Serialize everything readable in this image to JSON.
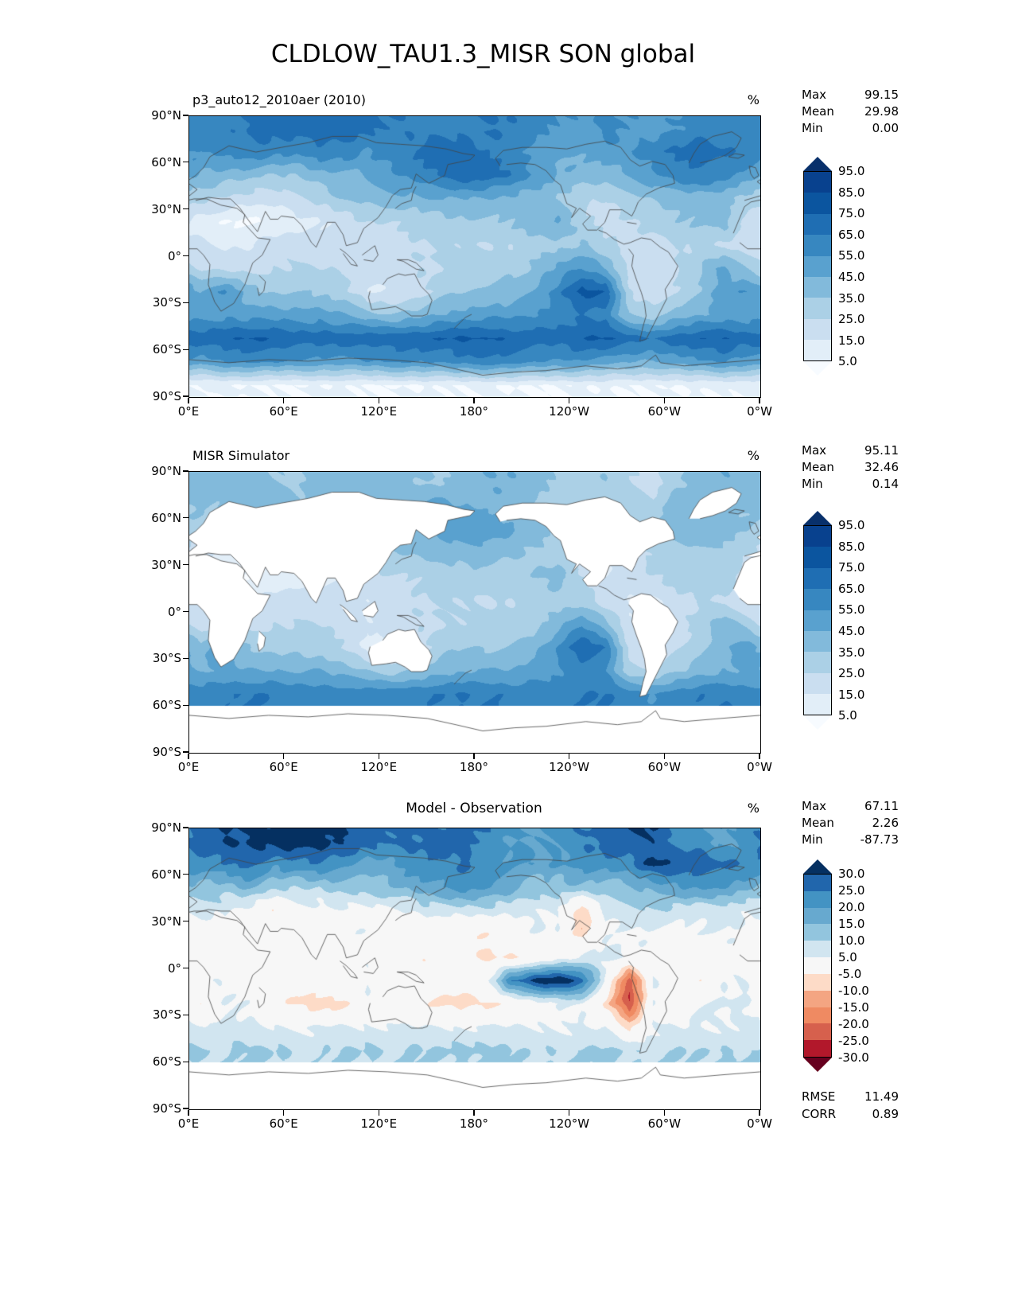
{
  "title": "CLDLOW_TAU1.3_MISR SON global",
  "axes": {
    "y_tick_labels": [
      "90°N",
      "60°N",
      "30°N",
      "0°",
      "30°S",
      "60°S",
      "90°S"
    ],
    "x_tick_labels": [
      "0°E",
      "60°E",
      "120°E",
      "180°",
      "120°W",
      "60°W",
      "0°W"
    ]
  },
  "chart_data": [
    {
      "type": "heatmap",
      "title": "p3_auto12_2010aer (2010)",
      "units": "%",
      "stats": [
        {
          "label": "Max",
          "value": "99.15"
        },
        {
          "label": "Mean",
          "value": "29.98"
        },
        {
          "label": "Min",
          "value": "0.00"
        }
      ],
      "colorbar": {
        "extend": "both",
        "levels": [
          5,
          15,
          25,
          35,
          45,
          55,
          65,
          75,
          85,
          95
        ],
        "tick_labels": [
          "95.0",
          "85.0",
          "75.0",
          "65.0",
          "55.0",
          "45.0",
          "35.0",
          "25.0",
          "15.0",
          "5.0"
        ],
        "colors": [
          "#f7fbff",
          "#e2eef8",
          "#cadef0",
          "#abd0e6",
          "#82badb",
          "#59a1cf",
          "#3787c0",
          "#1f6eb3",
          "#0b559f",
          "#08418e",
          "#08306b"
        ]
      },
      "grid": {
        "lon_start_deg": 0,
        "lon_step_deg": 15,
        "lat_start_deg": 90,
        "lat_step_deg": -15,
        "order": "rows 90N to 90S, cols 0E eastward, cell-center values, units percent"
      },
      "values": [
        [
          60,
          62,
          65,
          68,
          70,
          72,
          70,
          68,
          65,
          62,
          60,
          63,
          65,
          64,
          60,
          55,
          52,
          58,
          55,
          50,
          55,
          60,
          62,
          60
        ],
        [
          55,
          60,
          64,
          60,
          58,
          64,
          60,
          55,
          60,
          66,
          70,
          70,
          65,
          58,
          52,
          48,
          45,
          50,
          55,
          62,
          66,
          70,
          66,
          60
        ],
        [
          45,
          40,
          38,
          35,
          35,
          40,
          42,
          46,
          52,
          58,
          66,
          72,
          70,
          64,
          54,
          44,
          40,
          40,
          46,
          52,
          60,
          66,
          60,
          50
        ],
        [
          30,
          24,
          20,
          20,
          25,
          30,
          35,
          40,
          42,
          42,
          46,
          46,
          45,
          42,
          40,
          34,
          26,
          24,
          30,
          36,
          40,
          40,
          36,
          30
        ],
        [
          10,
          5,
          4,
          5,
          10,
          15,
          20,
          25,
          26,
          30,
          30,
          32,
          34,
          36,
          40,
          46,
          30,
          20,
          24,
          30,
          34,
          36,
          40,
          20
        ],
        [
          15,
          14,
          15,
          20,
          20,
          20,
          18,
          18,
          20,
          24,
          25,
          26,
          26,
          26,
          30,
          32,
          36,
          26,
          20,
          20,
          24,
          26,
          25,
          18
        ],
        [
          25,
          20,
          20,
          25,
          26,
          25,
          24,
          20,
          20,
          24,
          26,
          26,
          30,
          32,
          36,
          46,
          56,
          46,
          20,
          20,
          26,
          36,
          46,
          34
        ],
        [
          46,
          56,
          40,
          34,
          34,
          34,
          30,
          15,
          14,
          20,
          30,
          34,
          36,
          40,
          46,
          60,
          80,
          76,
          24,
          20,
          26,
          36,
          50,
          55
        ],
        [
          50,
          52,
          50,
          50,
          50,
          50,
          46,
          40,
          36,
          40,
          46,
          50,
          52,
          52,
          56,
          60,
          64,
          60,
          36,
          30,
          40,
          46,
          50,
          50
        ],
        [
          70,
          74,
          76,
          74,
          70,
          70,
          70,
          70,
          72,
          72,
          74,
          76,
          76,
          72,
          70,
          70,
          74,
          76,
          70,
          66,
          70,
          74,
          76,
          70
        ],
        [
          50,
          54,
          56,
          55,
          54,
          50,
          50,
          54,
          56,
          55,
          56,
          60,
          62,
          60,
          56,
          54,
          54,
          50,
          46,
          44,
          50,
          54,
          56,
          50
        ],
        [
          6,
          6,
          5,
          5,
          5,
          6,
          6,
          5,
          5,
          5,
          6,
          6,
          6,
          5,
          5,
          5,
          6,
          6,
          5,
          5,
          5,
          6,
          6,
          6
        ]
      ]
    },
    {
      "type": "heatmap",
      "title": "MISR Simulator",
      "units": "%",
      "stats": [
        {
          "label": "Max",
          "value": "95.11"
        },
        {
          "label": "Mean",
          "value": "32.46"
        },
        {
          "label": "Min",
          "value": "0.14"
        }
      ],
      "colorbar": {
        "extend": "both",
        "levels": [
          5,
          15,
          25,
          35,
          45,
          55,
          65,
          75,
          85,
          95
        ],
        "tick_labels": [
          "95.0",
          "85.0",
          "75.0",
          "65.0",
          "55.0",
          "45.0",
          "35.0",
          "25.0",
          "15.0",
          "5.0"
        ],
        "colors": [
          "#f7fbff",
          "#e2eef8",
          "#cadef0",
          "#abd0e6",
          "#82badb",
          "#59a1cf",
          "#3787c0",
          "#1f6eb3",
          "#0b559f",
          "#08418e",
          "#08306b"
        ]
      },
      "grid": {
        "lon_start_deg": 0,
        "lon_step_deg": 15,
        "lat_start_deg": 90,
        "lat_step_deg": -15,
        "order": "rows 90N to 90S, cols 0E eastward, cell-center values, units percent, null = no retrieval"
      },
      "values": [
        [
          40,
          40,
          42,
          36,
          34,
          40,
          40,
          40,
          40,
          36,
          34,
          40,
          44,
          44,
          40,
          34,
          30,
          34,
          26,
          20,
          34,
          40,
          44,
          40
        ],
        [
          36,
          36,
          40,
          40,
          36,
          40,
          40,
          40,
          42,
          46,
          50,
          46,
          44,
          40,
          34,
          30,
          26,
          30,
          34,
          30,
          40,
          44,
          40,
          36
        ],
        [
          30,
          26,
          20,
          20,
          22,
          26,
          26,
          30,
          36,
          40,
          46,
          50,
          50,
          46,
          40,
          30,
          26,
          26,
          30,
          36,
          40,
          44,
          40,
          34
        ],
        [
          20,
          15,
          10,
          10,
          15,
          20,
          25,
          30,
          34,
          36,
          40,
          40,
          40,
          36,
          34,
          30,
          20,
          16,
          20,
          26,
          30,
          34,
          30,
          25
        ],
        [
          10,
          6,
          5,
          5,
          10,
          14,
          16,
          20,
          24,
          26,
          30,
          30,
          30,
          30,
          34,
          40,
          26,
          15,
          20,
          25,
          30,
          30,
          34,
          15
        ],
        [
          14,
          10,
          14,
          20,
          20,
          20,
          16,
          15,
          20,
          24,
          25,
          25,
          25,
          25,
          30,
          30,
          30,
          20,
          15,
          15,
          20,
          24,
          25,
          15
        ],
        [
          20,
          16,
          20,
          25,
          25,
          25,
          20,
          15,
          20,
          24,
          25,
          25,
          26,
          30,
          30,
          40,
          54,
          40,
          15,
          15,
          20,
          30,
          40,
          30
        ],
        [
          40,
          50,
          36,
          30,
          30,
          30,
          26,
          10,
          14,
          20,
          30,
          34,
          34,
          36,
          40,
          55,
          75,
          66,
          20,
          15,
          25,
          30,
          44,
          50
        ],
        [
          45,
          46,
          45,
          45,
          45,
          45,
          40,
          36,
          30,
          36,
          40,
          45,
          46,
          46,
          50,
          55,
          60,
          55,
          30,
          26,
          34,
          40,
          45,
          45
        ],
        [
          60,
          64,
          65,
          64,
          60,
          60,
          60,
          60,
          62,
          62,
          64,
          65,
          65,
          62,
          60,
          60,
          64,
          65,
          60,
          56,
          60,
          64,
          65,
          60
        ],
        [
          null,
          null,
          null,
          null,
          null,
          null,
          null,
          null,
          null,
          null,
          null,
          null,
          null,
          null,
          null,
          null,
          null,
          null,
          null,
          null,
          null,
          null,
          null,
          null
        ],
        [
          null,
          null,
          null,
          null,
          null,
          null,
          null,
          null,
          null,
          null,
          null,
          null,
          null,
          null,
          null,
          null,
          null,
          null,
          null,
          null,
          null,
          null,
          null,
          null
        ]
      ]
    },
    {
      "type": "heatmap",
      "title": "Model - Observation",
      "units": "%",
      "stats": [
        {
          "label": "Max",
          "value": "67.11"
        },
        {
          "label": "Mean",
          "value": "2.26"
        },
        {
          "label": "Min",
          "value": "-87.73"
        }
      ],
      "footer_stats": [
        {
          "label": "RMSE",
          "value": "11.49"
        },
        {
          "label": "CORR",
          "value": "0.89"
        }
      ],
      "colorbar": {
        "extend": "both",
        "levels": [
          -30,
          -25,
          -20,
          -15,
          -10,
          -5,
          5,
          10,
          15,
          20,
          25,
          30
        ],
        "tick_labels": [
          "30.0",
          "25.0",
          "20.0",
          "15.0",
          "10.0",
          "5.0",
          "-5.0",
          "-10.0",
          "-15.0",
          "-20.0",
          "-25.0",
          "-30.0"
        ],
        "colors": [
          "#67001f",
          "#b2182b",
          "#d6604d",
          "#ef8a62",
          "#f4a582",
          "#fddbc7",
          "#f7f7f7",
          "#d1e5f0",
          "#92c5de",
          "#67a9cf",
          "#4393c3",
          "#2166ac",
          "#053061"
        ]
      },
      "grid": {
        "lon_start_deg": 0,
        "lon_step_deg": 15,
        "lat_start_deg": 90,
        "lat_step_deg": -15,
        "order": "rows 90N to 90S, cols 0E eastward, cell-center difference values, units percent, null = no data"
      },
      "values": [
        [
          28,
          30,
          30,
          32,
          34,
          32,
          30,
          28,
          26,
          26,
          26,
          28,
          24,
          20,
          20,
          22,
          24,
          28,
          30,
          30,
          22,
          22,
          18,
          22
        ],
        [
          22,
          26,
          28,
          22,
          24,
          26,
          22,
          18,
          20,
          24,
          24,
          26,
          22,
          20,
          20,
          20,
          22,
          22,
          24,
          32,
          28,
          28,
          26,
          24
        ],
        [
          14,
          12,
          16,
          12,
          10,
          10,
          12,
          12,
          14,
          16,
          20,
          22,
          20,
          18,
          12,
          12,
          14,
          12,
          14,
          16,
          20,
          22,
          20,
          16
        ],
        [
          8,
          6,
          3,
          -4,
          3,
          3,
          4,
          4,
          4,
          6,
          8,
          8,
          8,
          6,
          6,
          5,
          -10,
          6,
          8,
          10,
          8,
          6,
          6,
          5
        ],
        [
          2,
          1,
          0,
          0,
          -2,
          -2,
          3,
          4,
          1,
          2,
          -2,
          -3,
          -4,
          2,
          4,
          4,
          -8,
          4,
          3,
          4,
          3,
          4,
          5,
          3
        ],
        [
          1,
          3,
          1,
          -2,
          -3,
          -2,
          2,
          3,
          -2,
          -3,
          -4,
          -3,
          -5,
          -6,
          -4,
          2,
          6,
          6,
          4,
          4,
          -3,
          -4,
          2,
          3
        ],
        [
          5,
          3,
          -2,
          -4,
          -3,
          -2,
          3,
          4,
          -2,
          -3,
          -2,
          -2,
          3,
          25,
          32,
          34,
          28,
          5,
          -25,
          4,
          3,
          -4,
          4,
          4
        ],
        [
          -4,
          5,
          5,
          0,
          -6,
          -8,
          -6,
          4,
          0,
          -2,
          -6,
          -8,
          -6,
          -2,
          2,
          4,
          6,
          -6,
          -26,
          4,
          0,
          4,
          6,
          6
        ],
        [
          6,
          6,
          6,
          5,
          5,
          5,
          6,
          5,
          6,
          5,
          6,
          5,
          6,
          6,
          6,
          5,
          5,
          5,
          -6,
          5,
          6,
          6,
          5,
          6
        ],
        [
          10,
          10,
          11,
          10,
          9,
          9,
          10,
          10,
          10,
          10,
          10,
          11,
          11,
          10,
          9,
          10,
          10,
          11,
          10,
          9,
          10,
          10,
          11,
          10
        ],
        [
          null,
          null,
          null,
          null,
          null,
          null,
          null,
          null,
          null,
          null,
          null,
          null,
          null,
          null,
          null,
          null,
          null,
          null,
          null,
          null,
          null,
          null,
          null,
          null
        ],
        [
          null,
          null,
          null,
          null,
          null,
          null,
          null,
          null,
          null,
          null,
          null,
          null,
          null,
          null,
          null,
          null,
          null,
          null,
          null,
          null,
          null,
          null,
          null,
          null
        ]
      ]
    }
  ]
}
